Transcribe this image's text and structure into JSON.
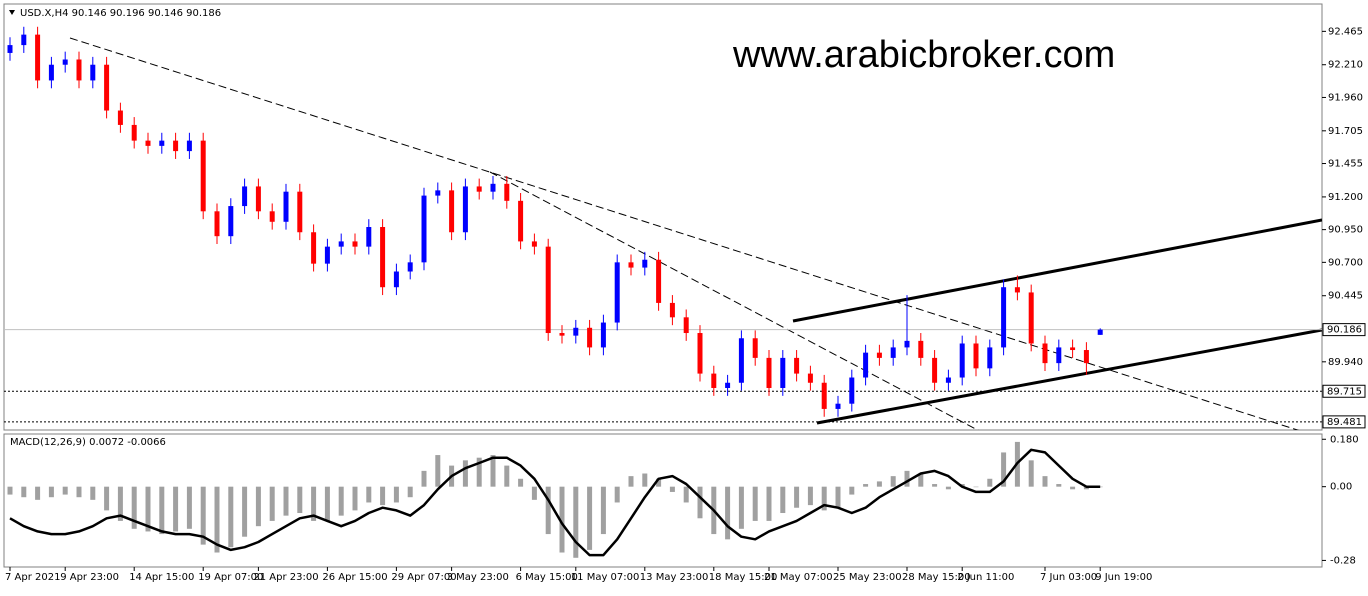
{
  "chart_data": {
    "type": "candlestick",
    "title": "USD.X,H4 90.146 90.196 90.146 90.186",
    "watermark": "www.arabicbroker.com",
    "categories": [
      "7 Apr 2021",
      null,
      null,
      null,
      "9 Apr 23:00",
      null,
      null,
      null,
      null,
      "14 Apr 15:00",
      null,
      null,
      null,
      null,
      "19 Apr 07:00",
      null,
      null,
      null,
      "21 Apr 23:00",
      null,
      null,
      null,
      null,
      "26 Apr 15:00",
      null,
      null,
      null,
      null,
      "29 Apr 07:00",
      null,
      null,
      null,
      "3 May 23:00",
      null,
      null,
      null,
      null,
      "6 May 15:00",
      null,
      null,
      null,
      "11 May 07:00",
      null,
      null,
      null,
      null,
      "13 May 23:00",
      null,
      null,
      null,
      null,
      "18 May 15:00",
      null,
      null,
      null,
      "21 May 07:00",
      null,
      null,
      null,
      null,
      "25 May 23:00",
      null,
      null,
      null,
      null,
      "28 May 15:00",
      null,
      null,
      null,
      "2 Jun 11:00",
      null,
      null,
      null,
      null,
      null,
      "7 Jun 03:00",
      null,
      null,
      null,
      "9 Jun 19:00"
    ],
    "open": [
      92.3,
      92.36,
      92.44,
      92.09,
      92.21,
      92.25,
      92.09,
      92.21,
      91.86,
      91.75,
      91.63,
      91.59,
      91.63,
      91.55,
      91.63,
      91.09,
      90.9,
      91.13,
      91.28,
      91.09,
      91.01,
      91.24,
      90.93,
      90.69,
      90.82,
      90.86,
      90.82,
      90.97,
      90.51,
      90.63,
      90.7,
      91.21,
      91.25,
      90.93,
      91.28,
      91.24,
      91.3,
      91.17,
      90.86,
      90.82,
      90.16,
      90.14,
      90.2,
      90.05,
      90.24,
      90.7,
      90.66,
      90.72,
      90.39,
      90.28,
      90.16,
      89.85,
      89.74,
      89.78,
      90.12,
      89.97,
      89.74,
      89.97,
      89.85,
      89.78,
      89.58,
      89.62,
      89.82,
      90.01,
      89.97,
      90.05,
      90.1,
      89.97,
      89.78,
      89.82,
      90.08,
      89.89,
      90.05,
      90.51,
      90.47,
      90.08,
      89.93,
      90.05,
      90.03,
      90.146
    ],
    "high": [
      92.42,
      92.5,
      92.5,
      92.27,
      92.31,
      92.31,
      92.27,
      92.27,
      91.92,
      91.81,
      91.69,
      91.69,
      91.69,
      91.69,
      91.69,
      91.15,
      91.19,
      91.34,
      91.34,
      91.15,
      91.3,
      91.3,
      90.99,
      90.88,
      90.92,
      90.92,
      91.03,
      91.03,
      90.69,
      90.76,
      91.27,
      91.31,
      91.31,
      91.34,
      91.34,
      91.36,
      91.36,
      91.23,
      90.92,
      90.88,
      90.22,
      90.26,
      90.26,
      90.3,
      90.76,
      90.76,
      90.78,
      90.78,
      90.45,
      90.34,
      90.22,
      89.91,
      89.84,
      90.18,
      90.18,
      90.03,
      90.03,
      90.03,
      89.91,
      89.84,
      89.68,
      89.88,
      90.07,
      90.07,
      90.11,
      90.45,
      90.16,
      90.03,
      89.88,
      90.14,
      90.14,
      90.11,
      90.57,
      90.6,
      90.53,
      90.14,
      90.11,
      90.11,
      90.09,
      90.196
    ],
    "low": [
      92.24,
      92.3,
      92.03,
      92.03,
      92.15,
      92.03,
      92.03,
      91.8,
      91.69,
      91.57,
      91.53,
      91.53,
      91.49,
      91.49,
      91.03,
      90.84,
      90.84,
      91.07,
      91.03,
      90.95,
      90.95,
      90.87,
      90.63,
      90.63,
      90.76,
      90.76,
      90.76,
      90.45,
      90.45,
      90.57,
      90.64,
      91.15,
      90.87,
      90.87,
      91.18,
      91.18,
      91.11,
      90.8,
      90.76,
      90.1,
      90.08,
      90.08,
      89.99,
      89.99,
      90.18,
      90.6,
      90.6,
      90.33,
      90.22,
      90.1,
      89.79,
      89.68,
      89.68,
      89.72,
      89.91,
      89.68,
      89.68,
      89.79,
      89.72,
      89.52,
      89.52,
      89.56,
      89.76,
      89.91,
      89.91,
      89.99,
      89.91,
      89.72,
      89.72,
      89.76,
      89.83,
      89.83,
      89.99,
      90.41,
      90.02,
      89.87,
      89.87,
      89.97,
      89.84,
      90.146
    ],
    "close": [
      92.36,
      92.44,
      92.09,
      92.21,
      92.25,
      92.09,
      92.21,
      91.86,
      91.75,
      91.63,
      91.59,
      91.63,
      91.55,
      91.63,
      91.09,
      90.9,
      91.13,
      91.28,
      91.09,
      91.01,
      91.24,
      90.93,
      90.69,
      90.82,
      90.86,
      90.82,
      90.97,
      90.51,
      90.63,
      90.7,
      91.21,
      91.25,
      90.93,
      91.28,
      91.24,
      91.3,
      91.17,
      90.86,
      90.82,
      90.16,
      90.14,
      90.2,
      90.05,
      90.24,
      90.7,
      90.66,
      90.72,
      90.39,
      90.28,
      90.16,
      89.85,
      89.74,
      89.78,
      90.12,
      89.97,
      89.74,
      89.97,
      89.85,
      89.78,
      89.58,
      89.62,
      89.82,
      90.01,
      89.97,
      90.05,
      90.1,
      89.97,
      89.78,
      89.82,
      90.08,
      89.89,
      90.05,
      90.51,
      90.47,
      90.08,
      89.93,
      90.05,
      90.03,
      89.93,
      90.186
    ],
    "up_color": "#0000ff",
    "down_color": "#ff0000",
    "ylim": [
      89.419,
      92.674
    ],
    "yticks": [
      92.465,
      {
        "value": 92.21,
        "label": "92.210"
      },
      {
        "value": 91.96,
        "label": "91.960"
      },
      91.705,
      91.455,
      {
        "value": 91.2,
        "label": "91.200"
      },
      {
        "value": 90.95,
        "label": "90.950"
      },
      {
        "value": 90.7,
        "label": "90.700"
      },
      90.445,
      {
        "value": 89.94,
        "label": "89.940"
      }
    ],
    "current_price": 90.186,
    "levels": [
      89.715,
      89.481
    ],
    "indicator": {
      "type": "macd",
      "title": "MACD(12,26,9) 0.0072 -0.0066",
      "ylim": [
        -0.305,
        0.2
      ],
      "yticks": [
        {
          "value": 0.18,
          "label": "0.180"
        },
        {
          "value": 0,
          "label": "0.00"
        },
        -0.28
      ],
      "histogram": {
        "color": "#a0a0a0",
        "values": [
          -0.03,
          -0.04,
          -0.05,
          -0.04,
          -0.03,
          -0.04,
          -0.05,
          -0.09,
          -0.13,
          -0.16,
          -0.17,
          -0.18,
          -0.17,
          -0.16,
          -0.22,
          -0.25,
          -0.23,
          -0.19,
          -0.15,
          -0.13,
          -0.11,
          -0.1,
          -0.13,
          -0.13,
          -0.11,
          -0.09,
          -0.06,
          -0.07,
          -0.06,
          -0.04,
          0.06,
          0.12,
          0.08,
          0.1,
          0.11,
          0.12,
          0.08,
          0.03,
          -0.05,
          -0.18,
          -0.25,
          -0.27,
          -0.24,
          -0.18,
          -0.06,
          0.04,
          0.05,
          0.03,
          -0.02,
          -0.06,
          -0.12,
          -0.18,
          -0.2,
          -0.16,
          -0.13,
          -0.13,
          -0.1,
          -0.08,
          -0.07,
          -0.09,
          -0.08,
          -0.03,
          0.01,
          0.02,
          0.04,
          0.06,
          0.05,
          0.01,
          -0.01,
          0.01,
          0.0,
          0.03,
          0.13,
          0.17,
          0.1,
          0.04,
          0.01,
          -0.01,
          -0.01,
          0.0
        ]
      },
      "signal": {
        "color": "#000000",
        "values": [
          -0.12,
          -0.15,
          -0.17,
          -0.18,
          -0.18,
          -0.17,
          -0.15,
          -0.12,
          -0.11,
          -0.13,
          -0.15,
          -0.17,
          -0.18,
          -0.18,
          -0.19,
          -0.22,
          -0.24,
          -0.23,
          -0.21,
          -0.18,
          -0.15,
          -0.12,
          -0.11,
          -0.13,
          -0.15,
          -0.13,
          -0.1,
          -0.08,
          -0.09,
          -0.11,
          -0.07,
          -0.01,
          0.04,
          0.07,
          0.09,
          0.11,
          0.11,
          0.08,
          0.03,
          -0.05,
          -0.14,
          -0.21,
          -0.26,
          -0.26,
          -0.2,
          -0.12,
          -0.04,
          0.03,
          0.04,
          0.01,
          -0.04,
          -0.09,
          -0.15,
          -0.19,
          -0.2,
          -0.17,
          -0.15,
          -0.13,
          -0.1,
          -0.07,
          -0.08,
          -0.1,
          -0.08,
          -0.04,
          -0.01,
          0.02,
          0.05,
          0.06,
          0.04,
          0.0,
          -0.02,
          -0.02,
          0.02,
          0.09,
          0.14,
          0.13,
          0.08,
          0.03,
          0.0,
          0.0
        ]
      }
    }
  }
}
